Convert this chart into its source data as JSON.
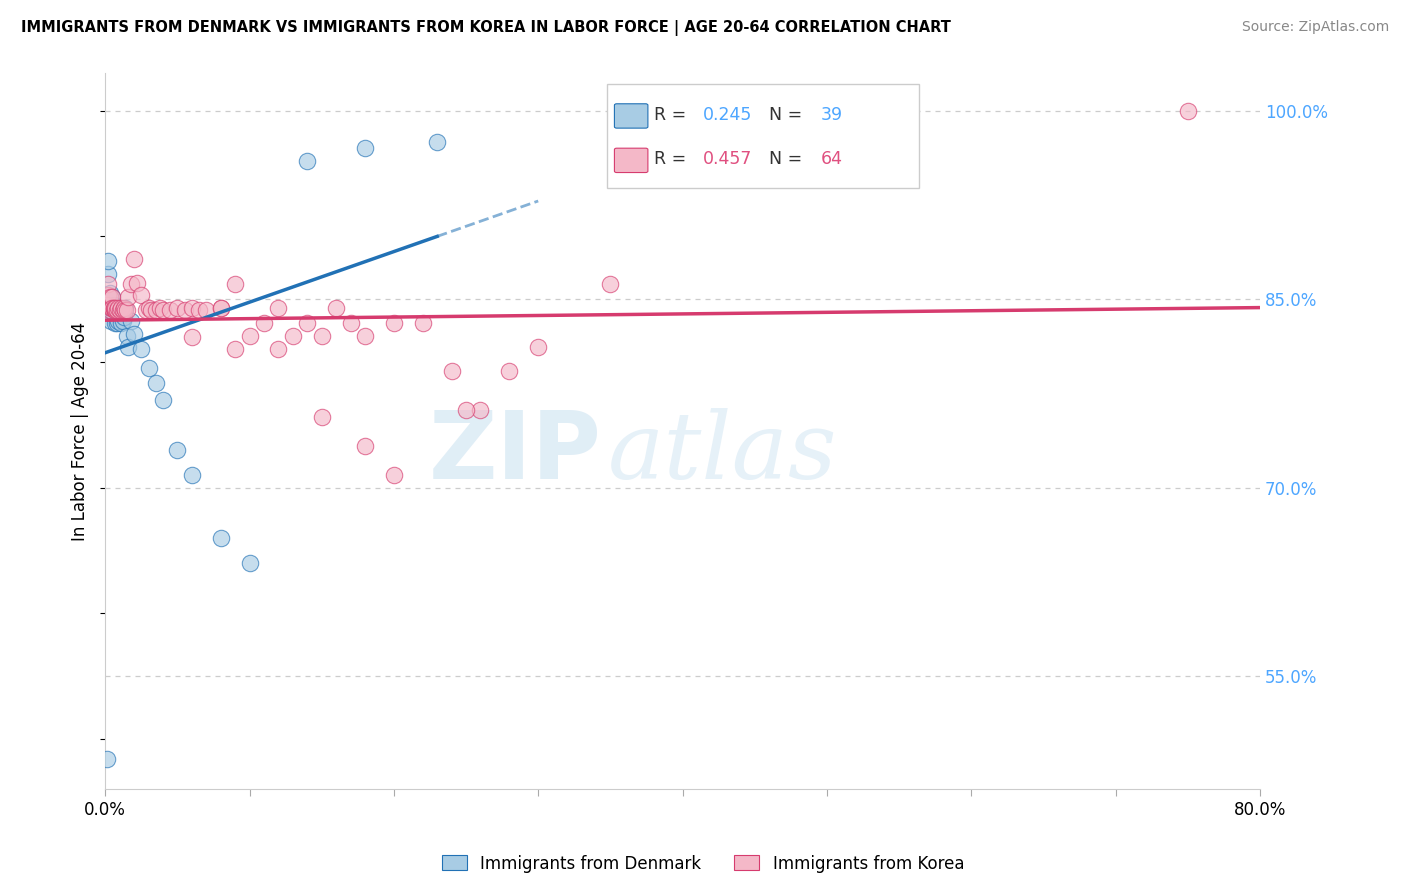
{
  "title": "IMMIGRANTS FROM DENMARK VS IMMIGRANTS FROM KOREA IN LABOR FORCE | AGE 20-64 CORRELATION CHART",
  "source": "Source: ZipAtlas.com",
  "ylabel": "In Labor Force | Age 20-64",
  "legend_label_denmark": "Immigrants from Denmark",
  "legend_label_korea": "Immigrants from Korea",
  "R_denmark": "0.245",
  "N_denmark": "39",
  "R_korea": "0.457",
  "N_korea": "64",
  "color_denmark": "#a8cce4",
  "color_korea": "#f4b8c8",
  "line_color_denmark": "#2171b5",
  "line_color_korea": "#d63b6e",
  "color_R_denmark": "#4da6ff",
  "color_R_korea": "#e05080",
  "xlim": [
    0.0,
    0.8
  ],
  "ylim": [
    0.46,
    1.03
  ],
  "yticks": [
    0.55,
    0.7,
    0.85,
    1.0
  ],
  "ytick_labels": [
    "55.0%",
    "70.0%",
    "85.0%",
    "100.0%"
  ],
  "watermark_zip": "ZIP",
  "watermark_atlas": "atlas",
  "denmark_x": [
    0.001,
    0.002,
    0.002,
    0.003,
    0.003,
    0.004,
    0.004,
    0.005,
    0.005,
    0.006,
    0.006,
    0.006,
    0.007,
    0.007,
    0.008,
    0.008,
    0.009,
    0.009,
    0.01,
    0.011,
    0.012,
    0.013,
    0.014,
    0.015,
    0.016,
    0.018,
    0.02,
    0.025,
    0.03,
    0.035,
    0.04,
    0.05,
    0.06,
    0.08,
    0.1,
    0.14,
    0.18,
    0.23,
    0.001
  ],
  "denmark_y": [
    0.84,
    0.87,
    0.88,
    0.855,
    0.845,
    0.843,
    0.833,
    0.852,
    0.843,
    0.845,
    0.838,
    0.843,
    0.842,
    0.831,
    0.843,
    0.831,
    0.84,
    0.833,
    0.843,
    0.831,
    0.833,
    0.836,
    0.843,
    0.821,
    0.812,
    0.833,
    0.822,
    0.81,
    0.795,
    0.783,
    0.77,
    0.73,
    0.71,
    0.66,
    0.64,
    0.96,
    0.97,
    0.975,
    0.484
  ],
  "korea_x": [
    0.001,
    0.002,
    0.002,
    0.003,
    0.003,
    0.004,
    0.005,
    0.005,
    0.006,
    0.006,
    0.007,
    0.007,
    0.008,
    0.009,
    0.01,
    0.011,
    0.012,
    0.013,
    0.014,
    0.015,
    0.016,
    0.018,
    0.02,
    0.022,
    0.025,
    0.028,
    0.03,
    0.032,
    0.035,
    0.038,
    0.04,
    0.045,
    0.05,
    0.055,
    0.06,
    0.065,
    0.07,
    0.08,
    0.09,
    0.1,
    0.11,
    0.12,
    0.13,
    0.14,
    0.15,
    0.16,
    0.17,
    0.18,
    0.2,
    0.22,
    0.24,
    0.26,
    0.28,
    0.3,
    0.35,
    0.25,
    0.18,
    0.2,
    0.15,
    0.12,
    0.75,
    0.09,
    0.08,
    0.06
  ],
  "korea_y": [
    0.845,
    0.853,
    0.862,
    0.841,
    0.852,
    0.843,
    0.852,
    0.843,
    0.842,
    0.843,
    0.841,
    0.843,
    0.841,
    0.843,
    0.841,
    0.843,
    0.841,
    0.843,
    0.841,
    0.841,
    0.852,
    0.862,
    0.882,
    0.863,
    0.853,
    0.841,
    0.843,
    0.841,
    0.841,
    0.843,
    0.841,
    0.841,
    0.843,
    0.841,
    0.843,
    0.841,
    0.841,
    0.843,
    0.862,
    0.821,
    0.831,
    0.843,
    0.821,
    0.831,
    0.821,
    0.843,
    0.831,
    0.821,
    0.831,
    0.831,
    0.793,
    0.762,
    0.793,
    0.812,
    0.862,
    0.762,
    0.733,
    0.71,
    0.756,
    0.81,
    1.0,
    0.81,
    0.843,
    0.82
  ]
}
